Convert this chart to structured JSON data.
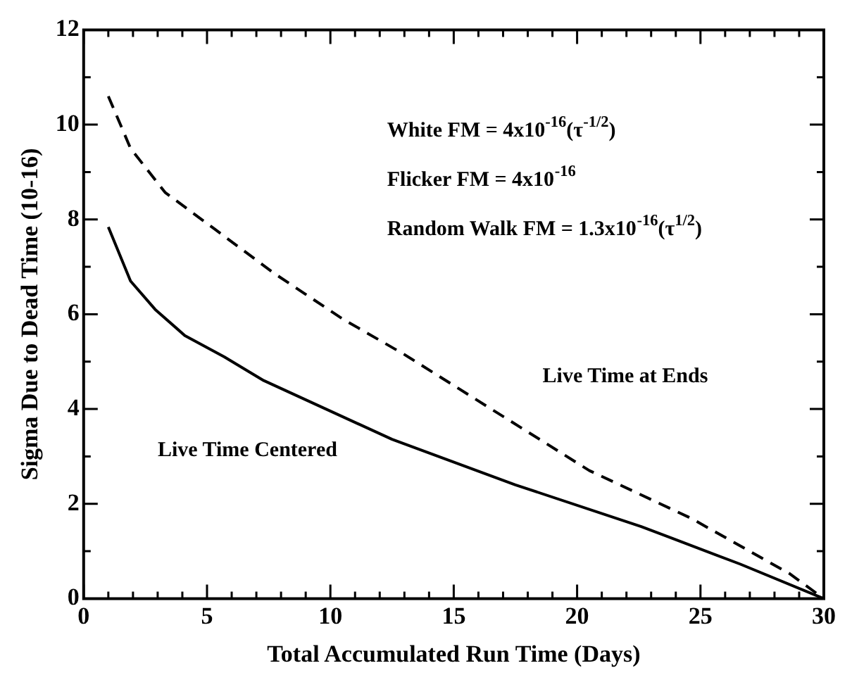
{
  "chart_data": {
    "type": "line",
    "xlabel": "Total Accumulated Run Time (Days)",
    "ylabel": "Sigma Due to Dead Time (10-16)",
    "xlim": [
      0,
      30
    ],
    "ylim": [
      0,
      12
    ],
    "xticks": [
      0,
      {
        "value": 1,
        "label": null
      },
      {
        "value": 2,
        "label": null
      },
      {
        "value": 3,
        "label": null
      },
      {
        "value": 4,
        "label": null
      },
      5,
      {
        "value": 6,
        "label": null
      },
      {
        "value": 7,
        "label": null
      },
      {
        "value": 8,
        "label": null
      },
      {
        "value": 9,
        "label": null
      },
      10,
      {
        "value": 11,
        "label": null
      },
      {
        "value": 12,
        "label": null
      },
      {
        "value": 13,
        "label": null
      },
      {
        "value": 14,
        "label": null
      },
      15,
      {
        "value": 16,
        "label": null
      },
      {
        "value": 17,
        "label": null
      },
      {
        "value": 18,
        "label": null
      },
      {
        "value": 19,
        "label": null
      },
      20,
      {
        "value": 21,
        "label": null
      },
      {
        "value": 22,
        "label": null
      },
      {
        "value": 23,
        "label": null
      },
      {
        "value": 24,
        "label": null
      },
      25,
      {
        "value": 26,
        "label": null
      },
      {
        "value": 27,
        "label": null
      },
      {
        "value": 28,
        "label": null
      },
      {
        "value": 29,
        "label": null
      },
      30
    ],
    "yticks": [
      0,
      {
        "value": 1,
        "label": null
      },
      2,
      {
        "value": 3,
        "label": null
      },
      4,
      {
        "value": 5,
        "label": null
      },
      6,
      {
        "value": 7,
        "label": null
      },
      8,
      {
        "value": 9,
        "label": null
      },
      10,
      {
        "value": 11,
        "label": null
      },
      12
    ],
    "grid": false,
    "legend": false,
    "marker": "none",
    "series": [
      {
        "color": "#000000",
        "line_style": "dashed",
        "x": [
          1,
          1.9,
          3.3,
          5.3,
          7.7,
          10.5,
          13,
          20.5,
          24.6,
          28.6,
          30
        ],
        "values": [
          10.6,
          9.5,
          8.57,
          7.8,
          6.87,
          5.9,
          5.15,
          2.7,
          1.7,
          0.53,
          0
        ]
      },
      {
        "color": "#000000",
        "line_style": "solid",
        "x": [
          1,
          1.9,
          2.9,
          4.1,
          5.7,
          7.3,
          12.5,
          17.5,
          22.6,
          26.6,
          30
        ],
        "values": [
          7.84,
          6.7,
          6.1,
          5.55,
          5.1,
          4.6,
          3.36,
          2.4,
          1.52,
          0.73,
          0
        ]
      }
    ],
    "annotations": [
      "White FM = 4x10$^{-16}$(τ$^{-1/2}$)",
      "Flicker FM = 4x10$^{-16}$",
      "Random Walk FM = 1.3x10$^{-16}$(τ$^{1/2}$)",
      "Live Time at Ends",
      "Live Time Centered"
    ]
  }
}
